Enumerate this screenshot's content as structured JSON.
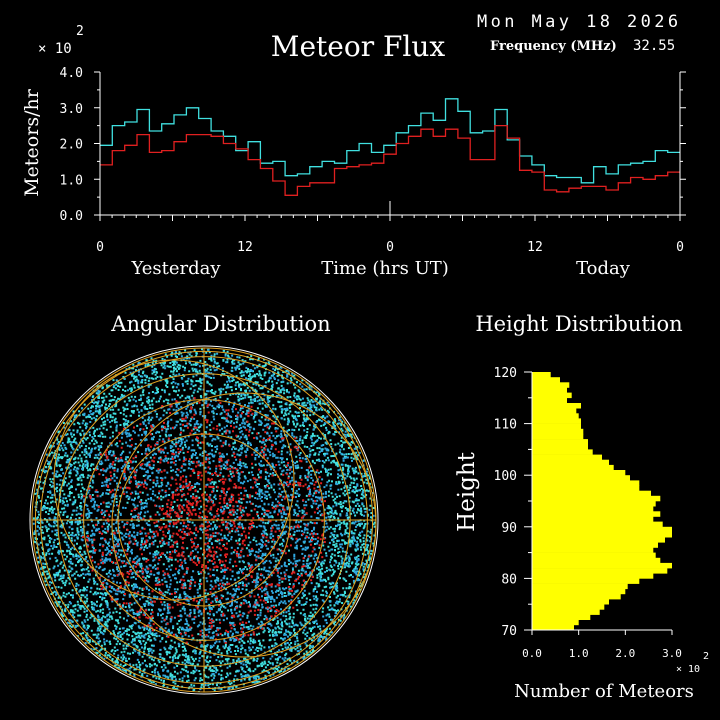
{
  "header": {
    "date": "Mon May 18 2026",
    "title": "Meteor Flux",
    "frequency_label": "Frequency (MHz)",
    "frequency_value": "32.55"
  },
  "colors": {
    "background": "#000000",
    "axes": "#ffffff",
    "cyan": "#40e0e0",
    "red": "#e02020",
    "blue": "#30a8e0",
    "orange": "#e0a020",
    "yellow": "#ffff00"
  },
  "chart_data": [
    {
      "type": "line",
      "title": "Meteor Flux",
      "ylabel": "Meteors/hr",
      "y_multiplier": "× 10",
      "y_multiplier_exp": "2",
      "ylim": [
        0,
        4.0
      ],
      "xlim": [
        0,
        48
      ],
      "y_ticks": [
        "0.0",
        "1.0",
        "2.0",
        "3.0",
        "4.0"
      ],
      "x_ticks": [
        {
          "pos": 0,
          "label": "0"
        },
        {
          "pos": 12,
          "label": "12"
        },
        {
          "pos": 24,
          "label": "0"
        },
        {
          "pos": 36,
          "label": "12"
        },
        {
          "pos": 48,
          "label": "0"
        }
      ],
      "x_labels": [
        "Yesterday",
        "Time (hrs UT)",
        "Today"
      ],
      "grid": false,
      "series": [
        {
          "color": "#40e0e0",
          "values": [
            1.95,
            2.5,
            2.6,
            2.95,
            2.35,
            2.55,
            2.8,
            3.0,
            2.7,
            2.35,
            2.2,
            1.8,
            2.05,
            1.45,
            1.5,
            1.1,
            1.15,
            1.35,
            1.5,
            1.45,
            1.8,
            2.0,
            1.75,
            1.95,
            2.3,
            2.5,
            2.85,
            2.65,
            3.25,
            2.9,
            2.3,
            2.35,
            2.95,
            2.1,
            1.65,
            1.4,
            1.1,
            1.05,
            1.05,
            0.9,
            1.35,
            1.15,
            1.4,
            1.45,
            1.5,
            1.8,
            1.75
          ]
        },
        {
          "color": "#e02020",
          "values": [
            1.4,
            1.8,
            1.95,
            2.25,
            1.75,
            1.8,
            2.05,
            2.25,
            2.25,
            2.2,
            2.0,
            1.85,
            1.55,
            1.3,
            0.95,
            0.55,
            0.8,
            0.9,
            0.9,
            1.3,
            1.35,
            1.4,
            1.45,
            1.7,
            2.0,
            2.2,
            2.4,
            2.2,
            2.4,
            2.15,
            1.55,
            1.55,
            2.5,
            2.15,
            1.25,
            1.2,
            0.7,
            0.65,
            0.75,
            0.8,
            0.8,
            0.7,
            0.9,
            1.05,
            1.0,
            1.1,
            1.2
          ]
        }
      ]
    },
    {
      "type": "scatter",
      "title": "Angular Distribution"
    },
    {
      "type": "bar",
      "orientation": "horizontal",
      "title": "Height Distribution",
      "ylabel": "Height",
      "xlabel": "Number of Meteors",
      "x_multiplier": "× 10",
      "x_multiplier_exp": "2",
      "ylim": [
        70,
        120
      ],
      "xlim": [
        0,
        3.0
      ],
      "y_ticks": [
        "70",
        "80",
        "90",
        "100",
        "110",
        "120"
      ],
      "x_ticks": [
        "0.0",
        "1.0",
        "2.0",
        "3.0"
      ],
      "bar_color": "#ffff00",
      "bins": [
        70,
        71,
        72,
        73,
        74,
        75,
        76,
        77,
        78,
        79,
        80,
        81,
        82,
        83,
        84,
        85,
        86,
        87,
        88,
        89,
        90,
        91,
        92,
        93,
        94,
        95,
        96,
        97,
        98,
        99,
        100,
        101,
        102,
        103,
        104,
        105,
        106,
        107,
        108,
        109,
        110,
        111,
        112,
        113,
        114,
        115,
        116,
        117,
        118,
        119
      ],
      "values": [
        0.9,
        1.0,
        1.25,
        1.45,
        1.55,
        1.65,
        1.9,
        2.0,
        2.05,
        2.3,
        2.6,
        2.9,
        3.0,
        2.75,
        2.65,
        2.6,
        2.7,
        2.85,
        3.0,
        3.0,
        2.8,
        2.6,
        2.75,
        2.6,
        2.65,
        2.75,
        2.55,
        2.3,
        2.3,
        2.1,
        2.0,
        1.75,
        1.65,
        1.5,
        1.3,
        1.2,
        1.2,
        1.1,
        1.1,
        1.05,
        1.05,
        1.0,
        0.95,
        1.05,
        0.75,
        0.85,
        0.75,
        0.8,
        0.6,
        0.4
      ]
    }
  ]
}
